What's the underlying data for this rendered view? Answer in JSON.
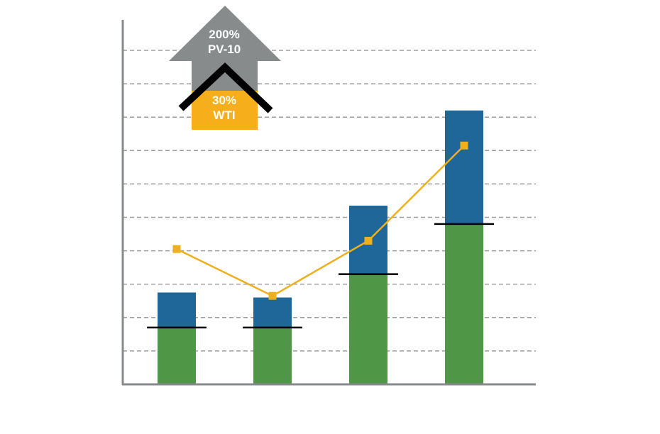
{
  "chart_data": {
    "type": "bar",
    "stacked": true,
    "title": "",
    "xlabel": "",
    "ylabel": "",
    "categories": [
      "",
      "",
      "",
      ""
    ],
    "ylim": [
      0,
      10
    ],
    "grid": true,
    "series": [
      {
        "type": "bar",
        "color": "#4f9646",
        "values": [
          1.7,
          1.7,
          3.3,
          4.8
        ]
      },
      {
        "type": "bar",
        "color": "#1f6699",
        "values": [
          1.05,
          0.9,
          2.05,
          3.4
        ]
      },
      {
        "type": "line",
        "color": "#efb01e",
        "values": [
          4.05,
          2.65,
          4.3,
          7.15
        ]
      }
    ],
    "reference_marks": {
      "color": "#000000",
      "values": [
        1.7,
        1.7,
        3.3,
        4.8
      ]
    }
  },
  "annotation": {
    "arrow_line1": "200%",
    "arrow_line2": "PV-10",
    "arrow_color": "#878b8c",
    "house_line1": "30%",
    "house_line2": "WTI",
    "house_color": "#f6ae1a",
    "roof_color": "#000000"
  },
  "colors": {
    "axis": "#878b8c",
    "grid": "#9c9e9f"
  }
}
